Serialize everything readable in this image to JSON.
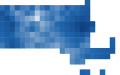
{
  "chart_data": {
    "type": "heatmap",
    "tick_labels": false,
    "zlim": [
      0,
      100
    ],
    "cells": [
      [
        null,
        null,
        null,
        null,
        null,
        null,
        null,
        null,
        null,
        null,
        null,
        null,
        null,
        null,
        null,
        null,
        null,
        70,
        null,
        null,
        null,
        null,
        null,
        null
      ],
      [
        65,
        72,
        58,
        70,
        62,
        60,
        66,
        55,
        63,
        68,
        60,
        57,
        61,
        70,
        64,
        66,
        72,
        75,
        null,
        null,
        null,
        null,
        null,
        null
      ],
      [
        78,
        68,
        62,
        55,
        58,
        64,
        60,
        45,
        52,
        58,
        62,
        60,
        66,
        64,
        70,
        68,
        74,
        76,
        null,
        null,
        null,
        null,
        null,
        null
      ],
      [
        74,
        80,
        70,
        60,
        57,
        52,
        48,
        38,
        56,
        60,
        64,
        58,
        62,
        68,
        72,
        76,
        80,
        78,
        null,
        null,
        null,
        null,
        null,
        null
      ],
      [
        72,
        76,
        82,
        66,
        60,
        56,
        62,
        58,
        50,
        55,
        60,
        66,
        70,
        74,
        78,
        84,
        88,
        86,
        80,
        null,
        null,
        null,
        null,
        null
      ],
      [
        70,
        74,
        78,
        64,
        58,
        62,
        66,
        60,
        54,
        58,
        62,
        64,
        68,
        72,
        76,
        82,
        90,
        85,
        72,
        null,
        null,
        null,
        null,
        null
      ],
      [
        68,
        72,
        70,
        62,
        60,
        58,
        52,
        56,
        60,
        62,
        58,
        60,
        64,
        68,
        70,
        74,
        78,
        70,
        null,
        null,
        null,
        null,
        null,
        null
      ],
      [
        66,
        70,
        74,
        68,
        62,
        60,
        58,
        54,
        56,
        60,
        62,
        58,
        60,
        64,
        66,
        70,
        68,
        62,
        null,
        null,
        null,
        null,
        70,
        null
      ],
      [
        62,
        68,
        76,
        70,
        64,
        58,
        56,
        62,
        60,
        58,
        55,
        52,
        58,
        62,
        64,
        66,
        60,
        58,
        null,
        null,
        null,
        null,
        72,
        null
      ],
      [
        null,
        null,
        null,
        null,
        null,
        null,
        null,
        null,
        null,
        null,
        null,
        null,
        60,
        54,
        56,
        58,
        62,
        64,
        66,
        68,
        70,
        72,
        74,
        null
      ],
      [
        null,
        null,
        null,
        null,
        null,
        null,
        null,
        null,
        null,
        null,
        null,
        null,
        null,
        null,
        56,
        60,
        64,
        68,
        66,
        70,
        72,
        74,
        null,
        null
      ],
      [
        null,
        null,
        null,
        null,
        null,
        null,
        null,
        null,
        null,
        null,
        null,
        null,
        null,
        null,
        58,
        62,
        60,
        null,
        null,
        null,
        null,
        null,
        null,
        null
      ],
      [
        null,
        null,
        null,
        null,
        null,
        null,
        null,
        null,
        null,
        null,
        null,
        null,
        null,
        null,
        null,
        null,
        null,
        null,
        null,
        null,
        null,
        null,
        null,
        null
      ],
      [
        null,
        null,
        null,
        null,
        null,
        null,
        null,
        null,
        null,
        null,
        null,
        null,
        null,
        null,
        null,
        null,
        70,
        68,
        null,
        null,
        66,
        null,
        null,
        null
      ]
    ]
  }
}
